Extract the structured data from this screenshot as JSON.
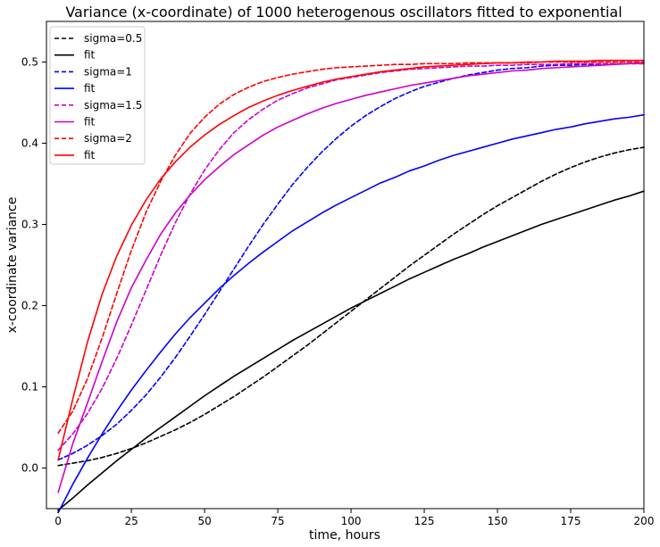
{
  "chart_data": {
    "type": "line",
    "title": "Variance (x-coordinate) of 1000 heterogenous oscillators fitted to exponential",
    "xlabel": "time, hours",
    "ylabel": "x-coordinate variance",
    "xlim": [
      -4,
      200
    ],
    "ylim": [
      -0.05,
      0.55
    ],
    "xticks": [
      0,
      25,
      50,
      75,
      100,
      125,
      150,
      175,
      200
    ],
    "yticks": [
      0.0,
      0.1,
      0.2,
      0.3,
      0.4,
      0.5
    ],
    "xtick_labels": [
      "0",
      "25",
      "50",
      "75",
      "100",
      "125",
      "150",
      "175",
      "200"
    ],
    "ytick_labels": [
      "0.0",
      "0.1",
      "0.2",
      "0.3",
      "0.4",
      "0.5"
    ],
    "grid": false,
    "legend_position": "top-left",
    "x": [
      0,
      5,
      10,
      15,
      20,
      25,
      30,
      35,
      40,
      45,
      50,
      55,
      60,
      65,
      70,
      75,
      80,
      85,
      90,
      95,
      100,
      105,
      110,
      115,
      120,
      125,
      130,
      135,
      140,
      145,
      150,
      155,
      160,
      165,
      170,
      175,
      180,
      185,
      190,
      195,
      200
    ],
    "series": [
      {
        "name": "sigma=0.5",
        "color": "#000000",
        "dash": "dashed",
        "values": [
          0.003,
          0.006,
          0.009,
          0.013,
          0.018,
          0.024,
          0.031,
          0.039,
          0.047,
          0.056,
          0.066,
          0.077,
          0.088,
          0.1,
          0.112,
          0.125,
          0.138,
          0.151,
          0.165,
          0.179,
          0.193,
          0.207,
          0.221,
          0.235,
          0.249,
          0.262,
          0.275,
          0.288,
          0.3,
          0.312,
          0.323,
          0.333,
          0.343,
          0.353,
          0.362,
          0.37,
          0.377,
          0.383,
          0.388,
          0.392,
          0.395
        ]
      },
      {
        "name": "fit",
        "color": "#000000",
        "dash": "solid",
        "values": [
          -0.052,
          -0.037,
          -0.021,
          -0.006,
          0.009,
          0.023,
          0.037,
          0.05,
          0.063,
          0.076,
          0.089,
          0.101,
          0.113,
          0.124,
          0.135,
          0.146,
          0.157,
          0.167,
          0.177,
          0.187,
          0.197,
          0.206,
          0.215,
          0.224,
          0.233,
          0.241,
          0.249,
          0.257,
          0.264,
          0.272,
          0.279,
          0.286,
          0.293,
          0.3,
          0.306,
          0.312,
          0.318,
          0.324,
          0.33,
          0.335,
          0.341
        ]
      },
      {
        "name": "sigma=1",
        "color": "#0000ff",
        "dash": "dashed",
        "values": [
          0.01,
          0.018,
          0.028,
          0.04,
          0.054,
          0.071,
          0.09,
          0.112,
          0.136,
          0.162,
          0.189,
          0.217,
          0.245,
          0.273,
          0.3,
          0.325,
          0.349,
          0.37,
          0.389,
          0.406,
          0.421,
          0.434,
          0.445,
          0.455,
          0.463,
          0.47,
          0.475,
          0.48,
          0.484,
          0.487,
          0.49,
          0.492,
          0.493,
          0.495,
          0.496,
          0.496,
          0.497,
          0.497,
          0.498,
          0.498,
          0.498
        ]
      },
      {
        "name": "fit",
        "color": "#0000ff",
        "dash": "solid",
        "values": [
          -0.055,
          -0.02,
          0.012,
          0.042,
          0.07,
          0.096,
          0.12,
          0.143,
          0.165,
          0.185,
          0.203,
          0.221,
          0.237,
          0.252,
          0.266,
          0.279,
          0.292,
          0.303,
          0.314,
          0.324,
          0.333,
          0.342,
          0.351,
          0.358,
          0.366,
          0.372,
          0.379,
          0.385,
          0.39,
          0.395,
          0.4,
          0.405,
          0.409,
          0.413,
          0.417,
          0.42,
          0.424,
          0.427,
          0.43,
          0.432,
          0.435
        ]
      },
      {
        "name": "sigma=1.5",
        "color": "#cc00cc",
        "dash": "dashed",
        "values": [
          0.022,
          0.042,
          0.067,
          0.098,
          0.135,
          0.176,
          0.219,
          0.262,
          0.302,
          0.337,
          0.367,
          0.392,
          0.413,
          0.429,
          0.442,
          0.453,
          0.461,
          0.468,
          0.473,
          0.478,
          0.481,
          0.484,
          0.487,
          0.489,
          0.491,
          0.492,
          0.493,
          0.494,
          0.495,
          0.495,
          0.496,
          0.496,
          0.497,
          0.497,
          0.497,
          0.498,
          0.498,
          0.498,
          0.498,
          0.498,
          0.498
        ]
      },
      {
        "name": "fit",
        "color": "#cc00cc",
        "dash": "solid",
        "values": [
          -0.03,
          0.03,
          0.08,
          0.131,
          0.18,
          0.222,
          0.256,
          0.288,
          0.314,
          0.336,
          0.355,
          0.371,
          0.386,
          0.398,
          0.41,
          0.42,
          0.428,
          0.436,
          0.443,
          0.449,
          0.454,
          0.459,
          0.463,
          0.467,
          0.471,
          0.474,
          0.477,
          0.48,
          0.483,
          0.485,
          0.487,
          0.489,
          0.49,
          0.492,
          0.493,
          0.494,
          0.495,
          0.496,
          0.497,
          0.498,
          0.499
        ]
      },
      {
        "name": "sigma=2",
        "color": "#ff0000",
        "dash": "dashed",
        "values": [
          0.043,
          0.07,
          0.11,
          0.16,
          0.215,
          0.268,
          0.315,
          0.353,
          0.385,
          0.412,
          0.432,
          0.448,
          0.46,
          0.469,
          0.476,
          0.481,
          0.485,
          0.488,
          0.491,
          0.493,
          0.494,
          0.495,
          0.496,
          0.497,
          0.497,
          0.498,
          0.498,
          0.498,
          0.499,
          0.499,
          0.499,
          0.499,
          0.499,
          0.5,
          0.5,
          0.5,
          0.5,
          0.5,
          0.5,
          0.5,
          0.5
        ]
      },
      {
        "name": "fit",
        "color": "#ff0000",
        "dash": "solid",
        "values": [
          0.01,
          0.085,
          0.155,
          0.214,
          0.261,
          0.299,
          0.33,
          0.356,
          0.377,
          0.395,
          0.41,
          0.423,
          0.434,
          0.444,
          0.452,
          0.459,
          0.465,
          0.47,
          0.475,
          0.479,
          0.482,
          0.485,
          0.488,
          0.49,
          0.492,
          0.494,
          0.495,
          0.496,
          0.497,
          0.498,
          0.499,
          0.499,
          0.5,
          0.5,
          0.501,
          0.501,
          0.501,
          0.502,
          0.502,
          0.502,
          0.502
        ]
      }
    ]
  }
}
